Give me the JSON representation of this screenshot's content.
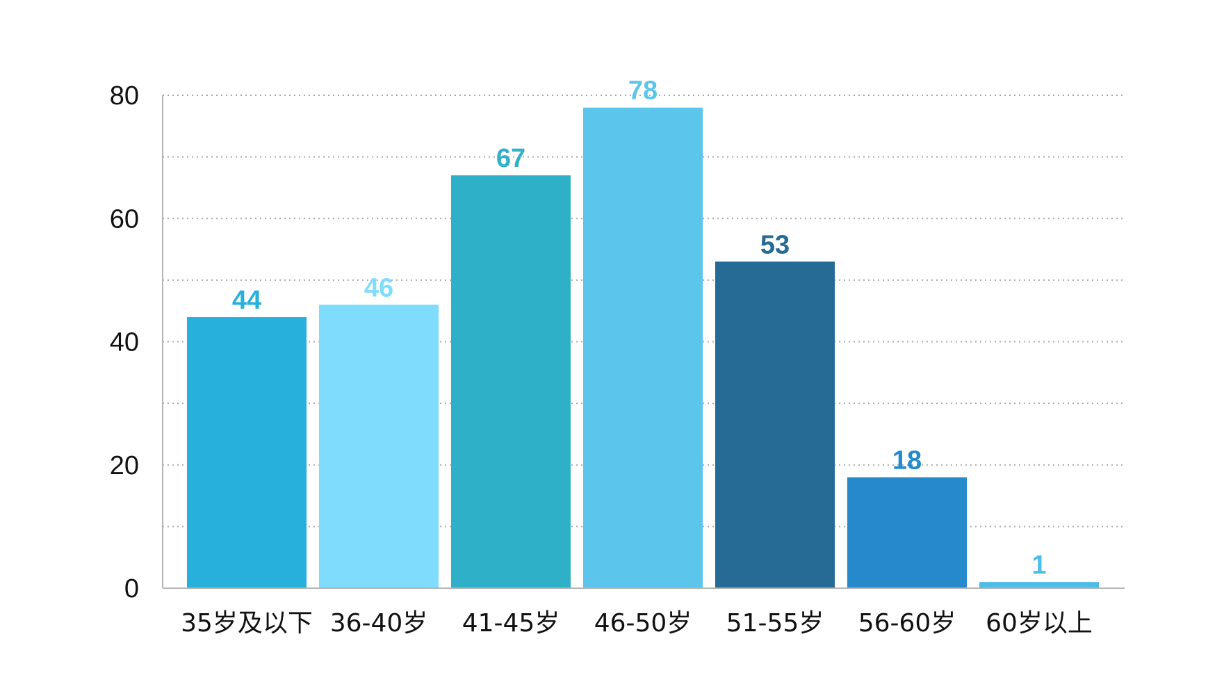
{
  "chart_data": {
    "type": "bar",
    "title": "",
    "xlabel": "",
    "ylabel": "",
    "categories": [
      "35岁及以下",
      "36-40岁",
      "41-45岁",
      "46-50岁",
      "51-55岁",
      "56-60岁",
      "60岁以上"
    ],
    "values": [
      44,
      46,
      67,
      78,
      53,
      18,
      1
    ],
    "data_labels": [
      "44",
      "46",
      "67",
      "78",
      "53",
      "18",
      "1"
    ],
    "ylim": [
      0,
      80
    ],
    "yticks": [
      0,
      20,
      40,
      60,
      80
    ],
    "ytick_labels": [
      "0",
      "20",
      "40",
      "60",
      "80"
    ],
    "grid": "dotted horizontal every 10",
    "legend": "none",
    "colors": [
      "#27b0dc",
      "#80dcfd",
      "#2fb0c9",
      "#5bc5ec",
      "#266a96",
      "#2589cb",
      "#4bbde6"
    ]
  }
}
